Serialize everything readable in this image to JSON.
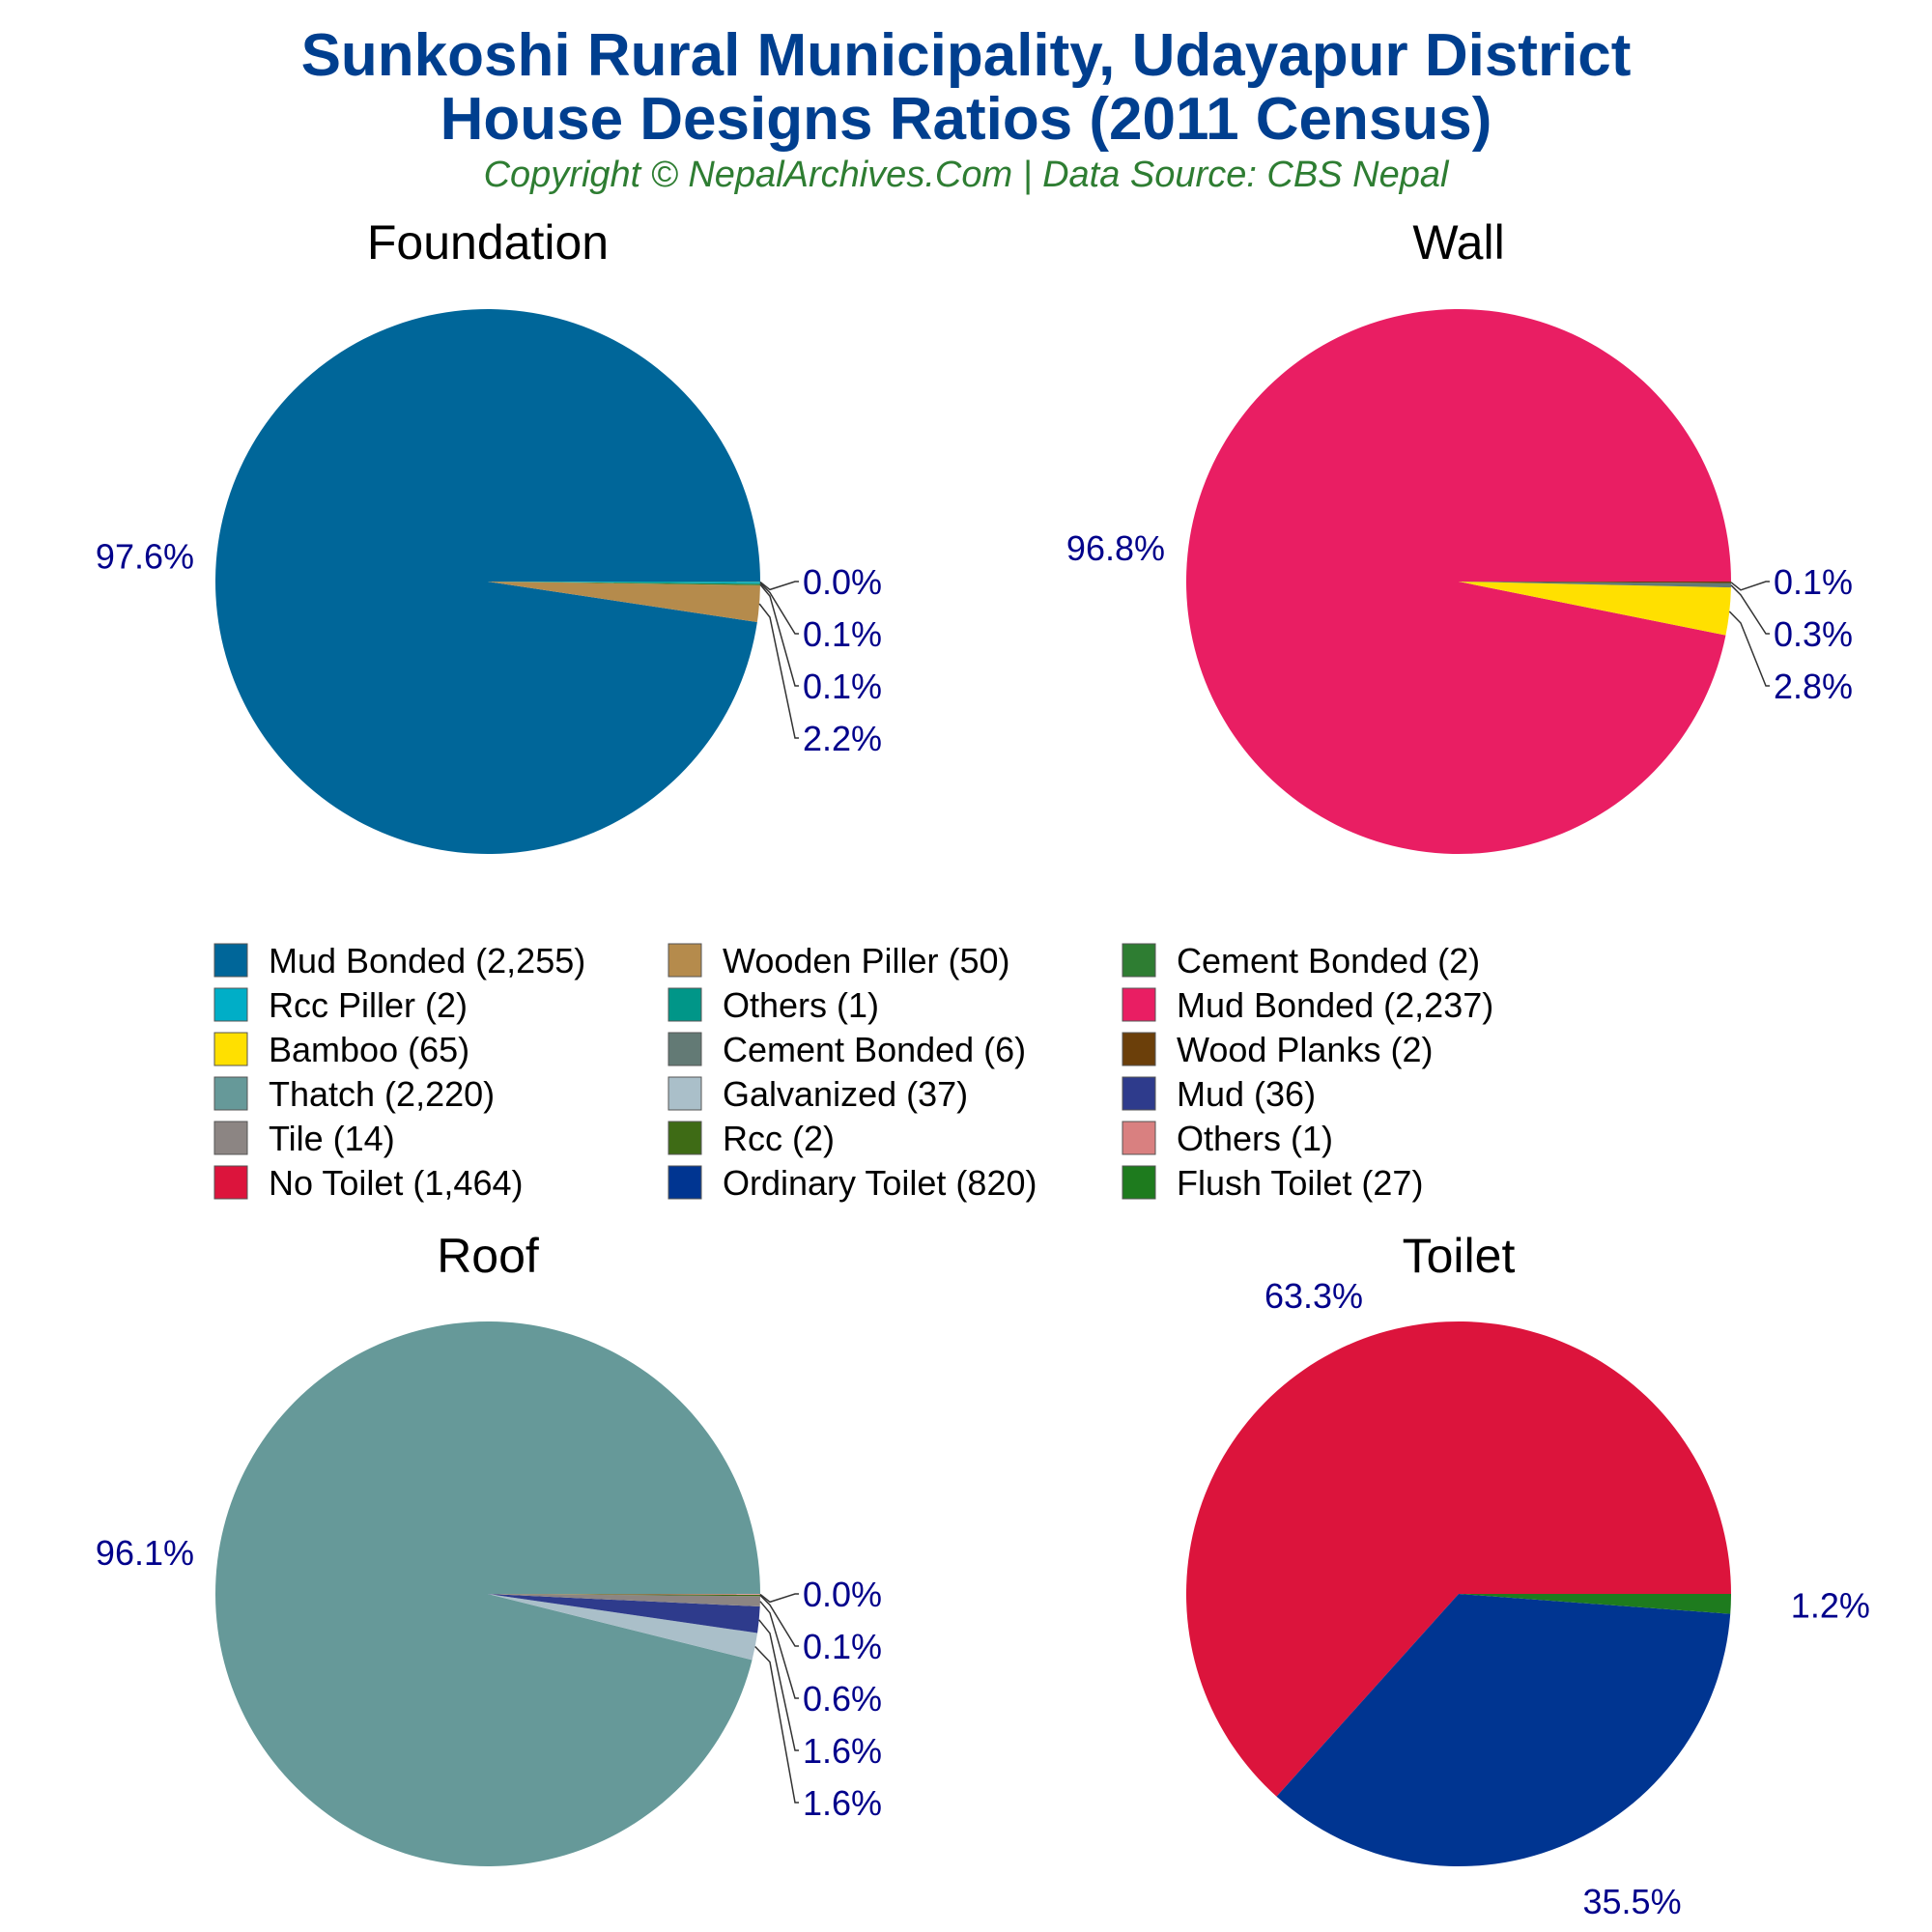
{
  "title": {
    "line1": "Sunkoshi Rural Municipality, Udayapur District",
    "line2": "House Designs Ratios (2011 Census)",
    "color": "#003f8f"
  },
  "subtitle": {
    "text": "Copyright © NepalArchives.Com | Data Source: CBS Nepal",
    "color": "#2e7d32"
  },
  "chart_data": [
    {
      "type": "pie",
      "title": "Foundation",
      "slices": [
        {
          "label": "Mud Bonded",
          "value": 2255,
          "percent_label": "97.6%",
          "color": "#006699"
        },
        {
          "label": "Wooden Piller",
          "value": 50,
          "percent_label": "2.2%",
          "color": "#b58b4c"
        },
        {
          "label": "Cement Bonded",
          "value": 2,
          "percent_label": "0.1%",
          "color": "#2e7d32"
        },
        {
          "label": "Rcc Piller",
          "value": 2,
          "percent_label": "0.1%",
          "color": "#00aec7"
        },
        {
          "label": "Others",
          "value": 1,
          "percent_label": "0.0%",
          "color": "#009688"
        }
      ]
    },
    {
      "type": "pie",
      "title": "Wall",
      "slices": [
        {
          "label": "Mud Bonded",
          "value": 2237,
          "percent_label": "96.8%",
          "color": "#e91e63"
        },
        {
          "label": "Bamboo",
          "value": 65,
          "percent_label": "2.8%",
          "color": "#ffe000"
        },
        {
          "label": "Cement Bonded",
          "value": 6,
          "percent_label": "0.3%",
          "color": "#637a75"
        },
        {
          "label": "Wood Planks",
          "value": 2,
          "percent_label": "0.1%",
          "color": "#6b3f0a"
        }
      ]
    },
    {
      "type": "pie",
      "title": "Roof",
      "slices": [
        {
          "label": "Thatch",
          "value": 2220,
          "percent_label": "96.1%",
          "color": "#669999"
        },
        {
          "label": "Galvanized",
          "value": 37,
          "percent_label": "1.6%",
          "color": "#aabfc9"
        },
        {
          "label": "Mud",
          "value": 36,
          "percent_label": "1.6%",
          "color": "#2e3b8c"
        },
        {
          "label": "Tile",
          "value": 14,
          "percent_label": "0.6%",
          "color": "#8c8583"
        },
        {
          "label": "Rcc",
          "value": 2,
          "percent_label": "0.1%",
          "color": "#3e6b15"
        },
        {
          "label": "Others",
          "value": 1,
          "percent_label": "0.0%",
          "color": "#d98080"
        }
      ]
    },
    {
      "type": "pie",
      "title": "Toilet",
      "slices": [
        {
          "label": "No Toilet",
          "value": 1464,
          "percent_label": "63.3%",
          "color": "#dc143c"
        },
        {
          "label": "Ordinary Toilet",
          "value": 820,
          "percent_label": "35.5%",
          "color": "#003591"
        },
        {
          "label": "Flush Toilet",
          "value": 27,
          "percent_label": "1.2%",
          "color": "#1e7b1e"
        }
      ]
    }
  ],
  "legend": {
    "position": "center",
    "items": [
      {
        "text": "Mud Bonded (2,255)",
        "color": "#006699"
      },
      {
        "text": "Wooden Piller (50)",
        "color": "#b58b4c"
      },
      {
        "text": "Cement Bonded (2)",
        "color": "#2e7d32"
      },
      {
        "text": "Rcc Piller (2)",
        "color": "#00aec7"
      },
      {
        "text": "Others (1)",
        "color": "#009688"
      },
      {
        "text": "Mud Bonded (2,237)",
        "color": "#e91e63"
      },
      {
        "text": "Bamboo (65)",
        "color": "#ffe000"
      },
      {
        "text": "Cement Bonded (6)",
        "color": "#637a75"
      },
      {
        "text": "Wood Planks (2)",
        "color": "#6b3f0a"
      },
      {
        "text": "Thatch (2,220)",
        "color": "#669999"
      },
      {
        "text": "Galvanized (37)",
        "color": "#aabfc9"
      },
      {
        "text": "Mud (36)",
        "color": "#2e3b8c"
      },
      {
        "text": "Tile (14)",
        "color": "#8c8583"
      },
      {
        "text": "Rcc (2)",
        "color": "#3e6b15"
      },
      {
        "text": "Others (1)",
        "color": "#d98080"
      },
      {
        "text": "No Toilet (1,464)",
        "color": "#dc143c"
      },
      {
        "text": "Ordinary Toilet (820)",
        "color": "#003591"
      },
      {
        "text": "Flush Toilet (27)",
        "color": "#1e7b1e"
      }
    ]
  },
  "label_color": "#00008b"
}
